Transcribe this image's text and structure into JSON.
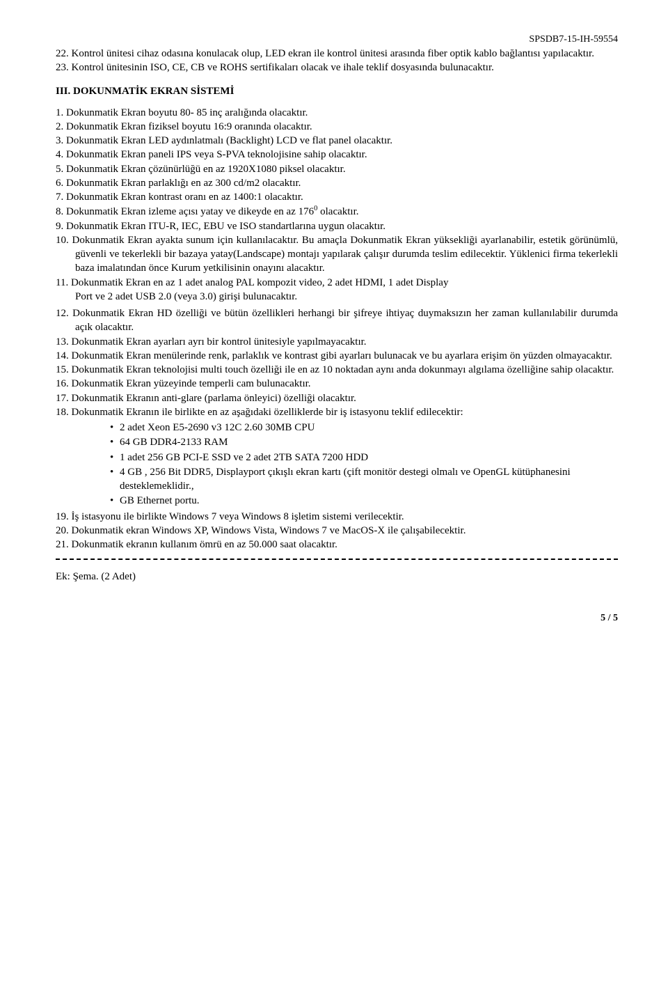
{
  "header": {
    "code": "SPSDB7-15-IH-59554"
  },
  "items_top": [
    "22. Kontrol ünitesi cihaz odasına konulacak olup, LED ekran ile kontrol ünitesi arasında fiber optik kablo bağlantısı yapılacaktır.",
    "23. Kontrol ünitesinin  ISO, CE, CB ve ROHS sertifikaları olacak ve ihale teklif dosyasında bulunacaktır."
  ],
  "section3_title": "III. DOKUNMATİK EKRAN SİSTEMİ",
  "items3": [
    "1. Dokunmatik Ekran  boyutu 80- 85 inç aralığında olacaktır.",
    "2. Dokunmatik Ekran fiziksel boyutu 16:9 oranında olacaktır.",
    "3. Dokunmatik Ekran  LED aydınlatmalı (Backlight) LCD ve flat panel olacaktır.",
    "4. Dokunmatik Ekran paneli IPS veya S-PVA teknolojisine sahip olacaktır.",
    "5. Dokunmatik Ekran çözünürlüğü en az 1920X1080 piksel olacaktır.",
    "6. Dokunmatik Ekran parlaklığı en az 300 cd/m2 olacaktır.",
    "7. Dokunmatik Ekran kontrast oranı en az 1400:1 olacaktır."
  ],
  "item8_pre": "8. Dokunmatik Ekran  izleme açısı yatay ve dikeyde en az 176",
  "item8_sup": "0",
  "item8_post": " olacaktır.",
  "items3b": [
    "9. Dokunmatik Ekran  ITU-R, IEC, EBU ve ISO standartlarına uygun olacaktır.",
    "10. Dokunmatik Ekran  ayakta sunum için kullanılacaktır. Bu amaçla Dokunmatik Ekran yüksekliği ayarlanabilir,  estetik görünümlü, güvenli ve tekerlekli bir bazaya yatay(Landscape) montajı yapılarak  çalışır durumda teslim edilecektir. Yüklenici firma tekerlekli baza imalatından önce Kurum yetkilisinin onayını alacaktır."
  ],
  "item11_line1": "11. Dokunmatik Ekran en az 1 adet analog PAL kompozit video, 2 adet HDMI, 1 adet Display",
  "item11_line2": "Port ve  2 adet USB 2.0 (veya 3.0) girişi bulunacaktır.",
  "items3c": [
    "12. Dokunmatik Ekran  HD özelliği ve bütün özellikleri herhangi bir şifreye ihtiyaç duymaksızın her zaman kullanılabilir durumda açık olacaktır.",
    "13. Dokunmatik Ekran  ayarları ayrı bir kontrol ünitesiyle yapılmayacaktır.",
    "14. Dokunmatik Ekran  menülerinde renk, parlaklık ve kontrast gibi ayarları bulunacak ve bu ayarlara erişim ön yüzden olmayacaktır.",
    "15. Dokunmatik Ekran teknolojisi multi touch özelliği ile  en az 10 noktadan  aynı anda dokunmayı algılama özelliğine sahip olacaktır.",
    "16. Dokunmatik Ekran  yüzeyinde temperli cam bulunacaktır.",
    "17. Dokunmatik Ekranın anti-glare (parlama önleyici) özelliği olacaktır.",
    "18. Dokunmatik Ekranın ile birlikte en az aşağıdaki özelliklerde bir iş istasyonu teklif edilecektir:"
  ],
  "bullets": [
    "2 adet Xeon E5-2690 v3 12C 2.60 30MB CPU",
    "64 GB DDR4-2133 RAM",
    "1 adet 256 GB PCI-E SSD ve 2 adet 2TB SATA 7200 HDD",
    "4 GB , 256 Bit DDR5, Displayport çıkışlı ekran kartı (çift monitör destegi olmalı ve OpenGL kütüphanesini desteklemeklidir.,",
    "GB Ethernet portu."
  ],
  "items3d": [
    "19. İş istasyonu ile birlikte Windows 7 veya Windows 8 işletim sistemi verilecektir.",
    "20. Dokunmatik ekran Windows XP, Windows Vista, Windows 7 ve MacOS-X ile çalışabilecektir.",
    "21. Dokunmatik ekranın kullanım ömrü en az 50.000 saat olacaktır."
  ],
  "appendix": "Ek: Şema. (2 Adet)",
  "page": "5 / 5"
}
